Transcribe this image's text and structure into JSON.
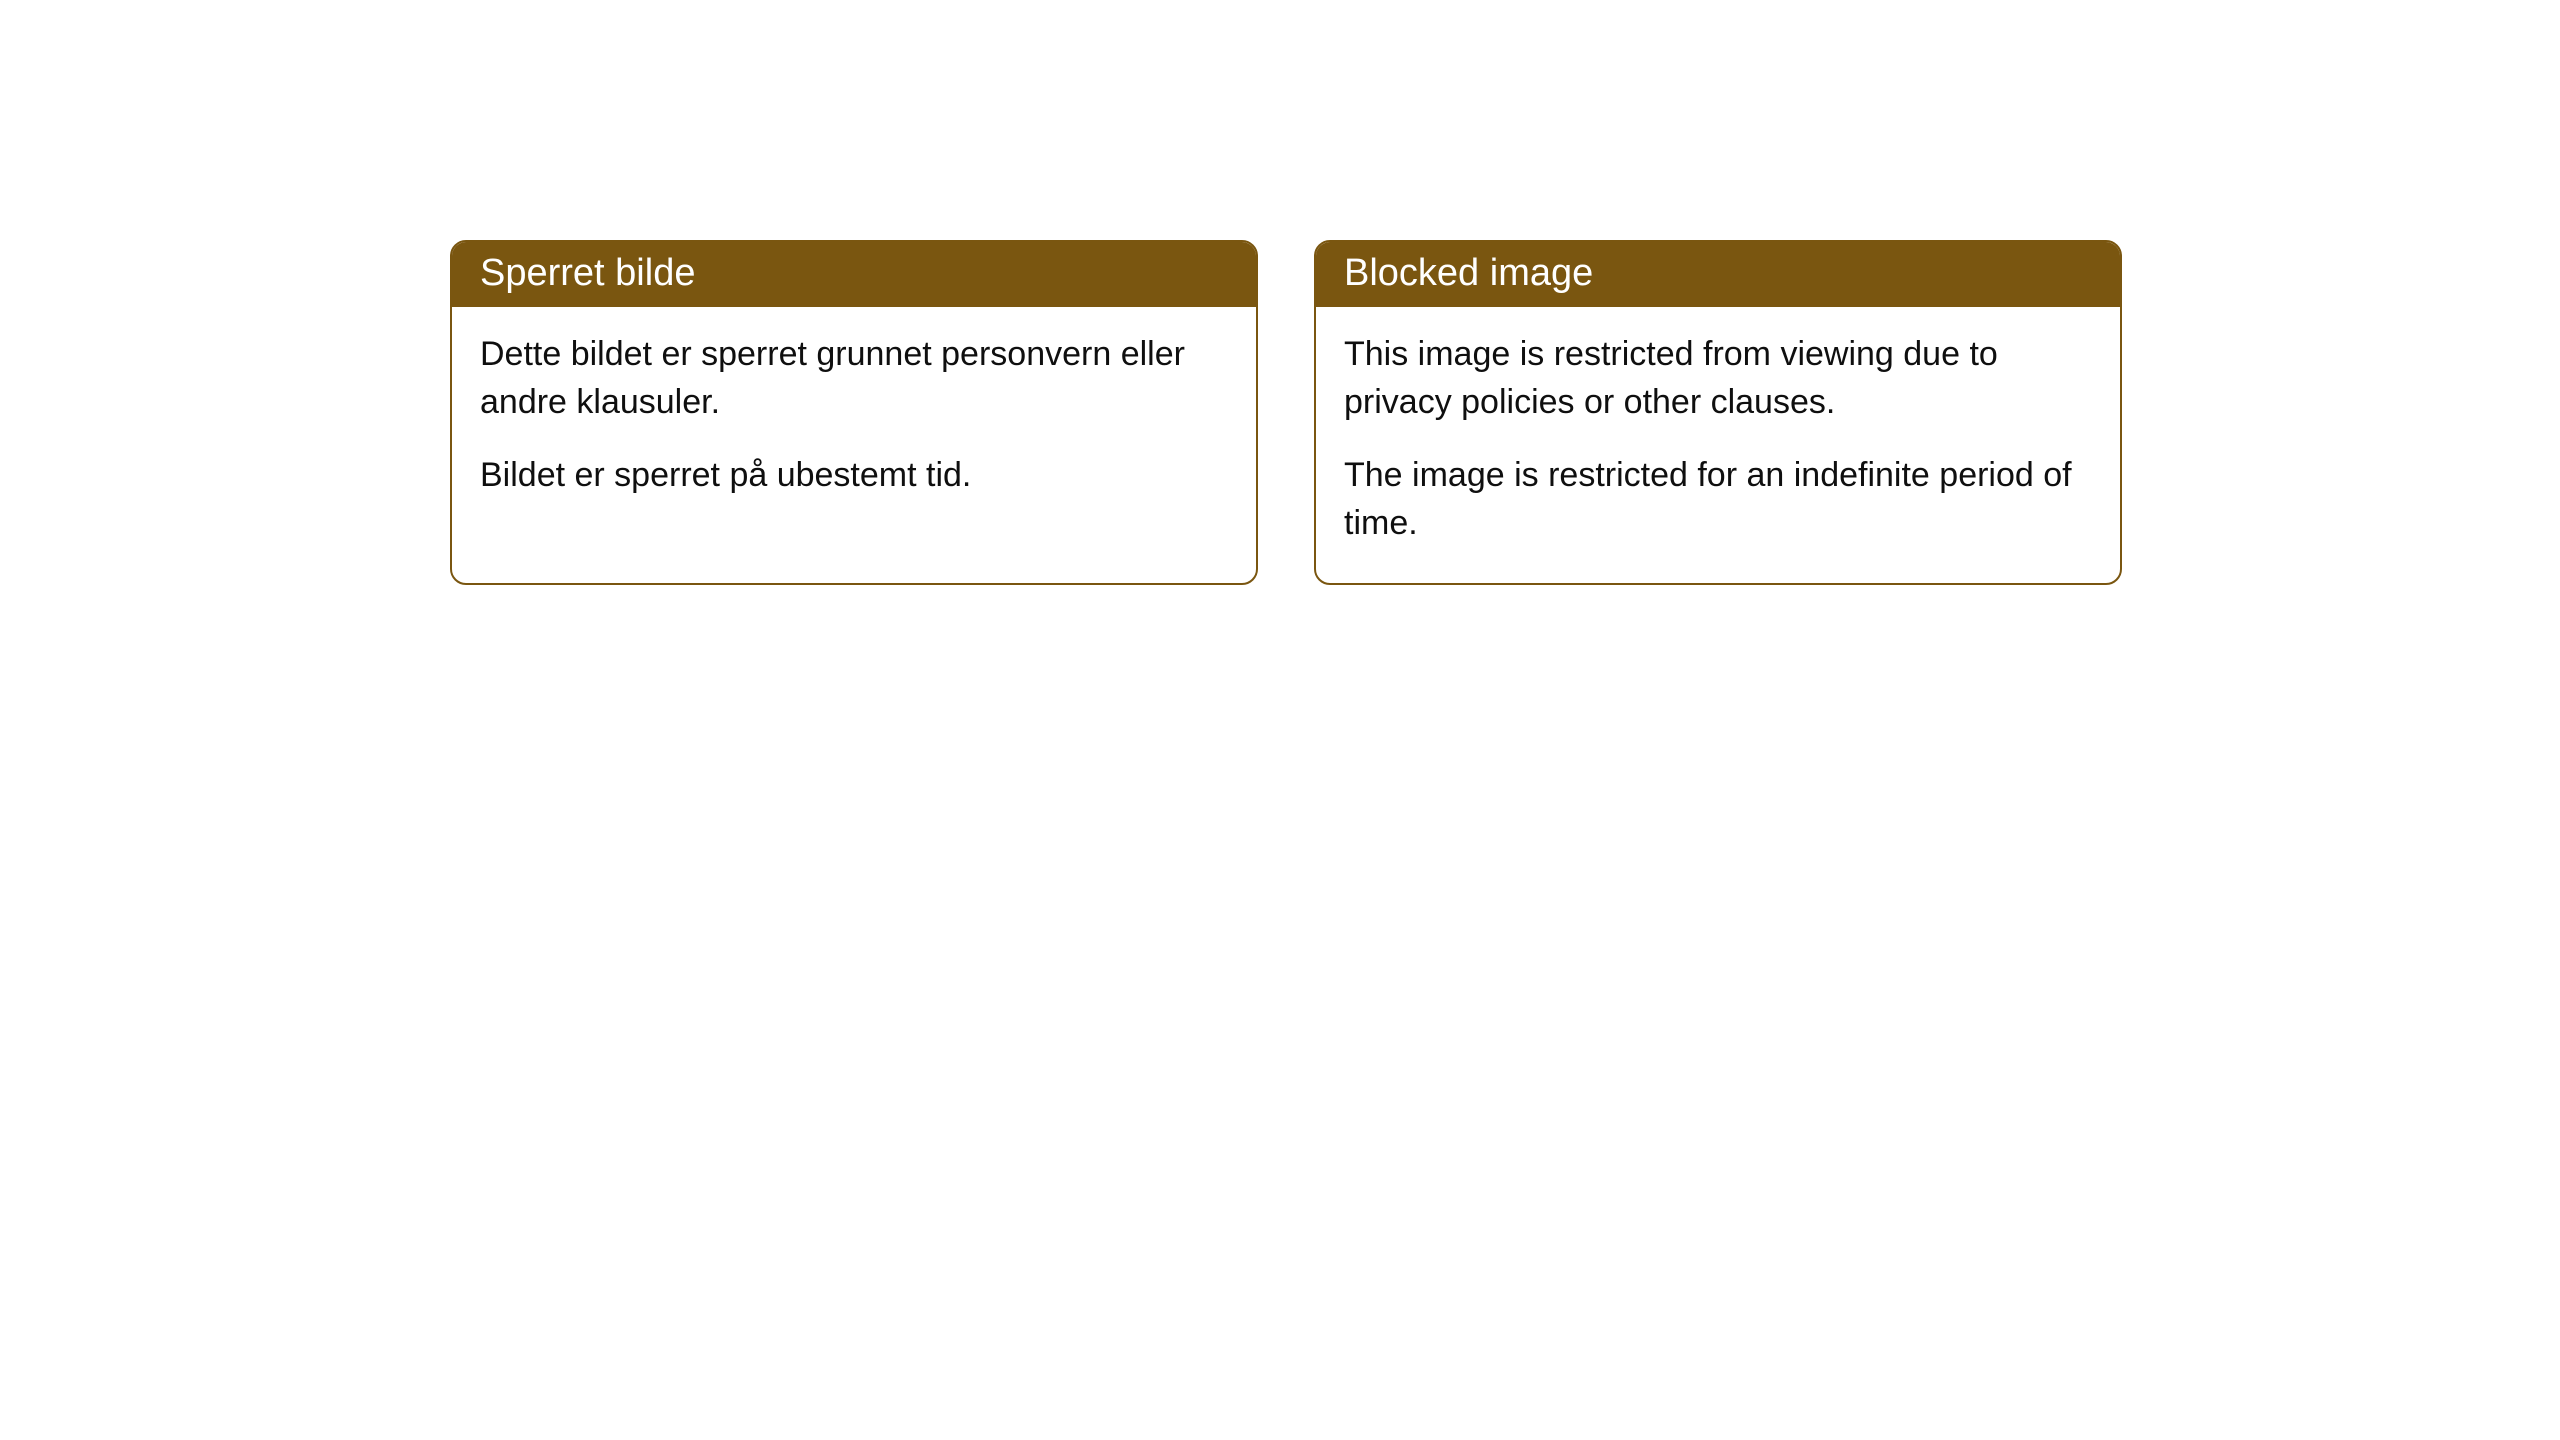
{
  "cards": [
    {
      "header": "Sperret bilde",
      "paragraph1": "Dette bildet er sperret grunnet personvern eller andre klausuler.",
      "paragraph2": "Bildet er sperret på ubestemt tid."
    },
    {
      "header": "Blocked image",
      "paragraph1": "This image is restricted from viewing due to privacy policies or other clauses.",
      "paragraph2": "The image is restricted for an indefinite period of time."
    }
  ],
  "styling": {
    "header_background": "#7a5610",
    "header_text_color": "#ffffff",
    "body_text_color": "#0f0f0f",
    "card_border_color": "#7a5610",
    "card_background": "#ffffff",
    "page_background": "#ffffff",
    "header_fontsize": 38,
    "body_fontsize": 34,
    "border_radius": 16
  }
}
